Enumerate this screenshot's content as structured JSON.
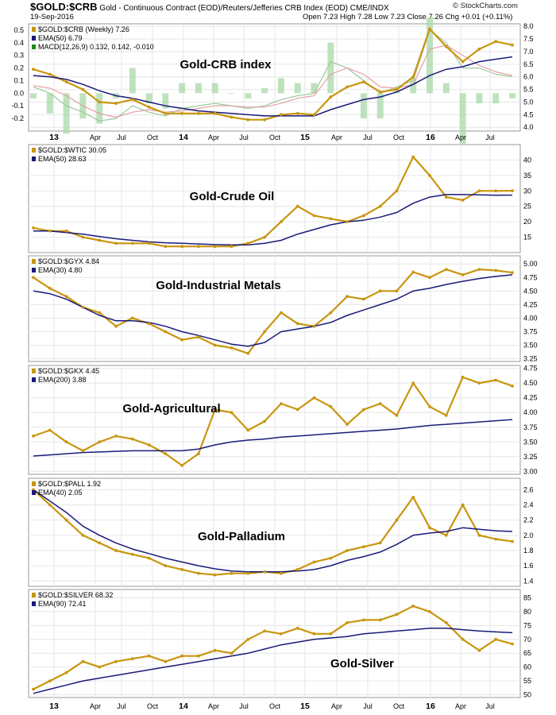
{
  "header": {
    "symbol": "$GOLD:$CRB",
    "description": "Gold - Continuous Contract (EOD)/Reuters/Jefferies CRB Index (EOD)  CME/INDX",
    "date": "19-Sep-2016",
    "ohlc": "Open 7.23  High 7.28  Low 7.23  Close 7.26  Chg +0.01 (+0.11%)",
    "watermark": "© StockCharts.com"
  },
  "colors": {
    "price": "#c8960f",
    "ema": "#1a1a7a",
    "grid": "#e6e6e6",
    "macd": "#1c8a1c",
    "signal": "#cc3333"
  },
  "chart_data": [
    {
      "type": "line",
      "legend": [
        "$GOLD:$CRB (Weekly) 7.26",
        "EMA(50) 6.79",
        "MACD(12,26,9) 0.132, 0.142, -0.010"
      ],
      "annotation": "Gold-CRB index",
      "ylim": [
        3.85,
        8.1
      ],
      "yticks": [
        4.0,
        4.5,
        5.0,
        5.5,
        6.0,
        6.5,
        7.0,
        7.5,
        8.0
      ],
      "ytick_labels": [
        "4.0",
        "4.5",
        "5.0",
        "5.5",
        "6.0",
        "6.5",
        "7.0",
        "7.5",
        "8.0"
      ],
      "macd_ylim": [
        -0.3,
        0.55
      ],
      "macd_ticks": [
        -0.2,
        -0.1,
        0.0,
        0.1,
        0.2,
        0.3,
        0.4,
        0.5
      ],
      "macd_tick_labels": [
        "-0.2",
        "-0.1",
        "0.0",
        "0.1",
        "0.2",
        "0.3",
        "0.4",
        "0.5"
      ],
      "price": [
        6.3,
        6.1,
        5.8,
        5.5,
        5.0,
        4.95,
        5.1,
        4.8,
        4.55,
        4.55,
        4.55,
        4.55,
        4.4,
        4.3,
        4.3,
        4.5,
        4.55,
        4.5,
        5.2,
        5.6,
        5.8,
        5.4,
        5.5,
        6.0,
        7.9,
        7.2,
        6.6,
        7.1,
        7.4,
        7.26
      ],
      "ema": [
        6.05,
        6.0,
        5.9,
        5.7,
        5.45,
        5.25,
        5.15,
        5.0,
        4.85,
        4.75,
        4.65,
        4.6,
        4.55,
        4.5,
        4.45,
        4.45,
        4.45,
        4.45,
        4.7,
        4.9,
        5.1,
        5.2,
        5.4,
        5.7,
        6.05,
        6.3,
        6.4,
        6.6,
        6.7,
        6.79
      ],
      "macd": [
        0.05,
        0.0,
        -0.1,
        -0.15,
        -0.22,
        -0.2,
        -0.1,
        -0.15,
        -0.18,
        -0.12,
        -0.1,
        -0.08,
        -0.1,
        -0.12,
        -0.1,
        -0.05,
        -0.02,
        0.0,
        0.25,
        0.2,
        0.1,
        0.0,
        0.05,
        0.1,
        0.5,
        0.4,
        0.2,
        0.2,
        0.15,
        0.132
      ],
      "signal": [
        0.06,
        0.04,
        -0.02,
        -0.1,
        -0.16,
        -0.19,
        -0.15,
        -0.13,
        -0.15,
        -0.14,
        -0.12,
        -0.1,
        -0.1,
        -0.11,
        -0.11,
        -0.08,
        -0.04,
        -0.02,
        0.15,
        0.2,
        0.15,
        0.05,
        0.04,
        0.07,
        0.35,
        0.38,
        0.3,
        0.22,
        0.17,
        0.142
      ]
    },
    {
      "type": "line",
      "legend": [
        "$GOLD:$WTIC 30.05",
        "EMA(50) 28.63"
      ],
      "annotation": "Gold-Crude Oil",
      "ylim": [
        10,
        45
      ],
      "yticks": [
        15,
        20,
        25,
        30,
        35,
        40
      ],
      "ytick_labels": [
        "15",
        "20",
        "25",
        "30",
        "35",
        "40"
      ],
      "price": [
        18,
        17,
        17,
        15,
        14,
        13,
        13,
        13,
        12,
        12,
        12,
        12,
        12,
        13,
        15,
        20,
        25,
        22,
        21,
        20,
        22,
        25,
        30,
        41,
        35,
        28,
        27,
        30,
        30,
        30.05
      ],
      "ema": [
        17,
        17,
        16.5,
        16,
        15.2,
        14.5,
        14,
        13.5,
        13.2,
        13,
        12.8,
        12.6,
        12.5,
        12.5,
        13,
        14,
        16,
        17.5,
        19,
        20,
        20.5,
        21.5,
        23,
        26,
        28,
        28.8,
        28.8,
        28.7,
        28.6,
        28.63
      ]
    },
    {
      "type": "line",
      "legend": [
        "$GOLD:$GYX 4.84",
        "EMA(30) 4.80"
      ],
      "annotation": "Gold-Industrial Metals",
      "ylim": [
        3.2,
        5.15
      ],
      "yticks": [
        3.25,
        3.5,
        3.75,
        4.0,
        4.25,
        4.5,
        4.75,
        5.0
      ],
      "ytick_labels": [
        "3.25",
        "3.50",
        "3.75",
        "4.00",
        "4.25",
        "4.50",
        "4.75",
        "5.00"
      ],
      "price": [
        4.75,
        4.55,
        4.4,
        4.2,
        4.1,
        3.85,
        4.0,
        3.9,
        3.75,
        3.6,
        3.65,
        3.5,
        3.45,
        3.35,
        3.75,
        4.1,
        3.9,
        3.85,
        4.1,
        4.4,
        4.35,
        4.5,
        4.5,
        4.85,
        4.75,
        4.9,
        4.8,
        4.9,
        4.88,
        4.84
      ],
      "ema": [
        4.5,
        4.45,
        4.35,
        4.2,
        4.05,
        3.95,
        3.95,
        3.92,
        3.85,
        3.75,
        3.68,
        3.6,
        3.52,
        3.48,
        3.55,
        3.75,
        3.8,
        3.85,
        3.92,
        4.05,
        4.15,
        4.25,
        4.35,
        4.5,
        4.55,
        4.62,
        4.68,
        4.73,
        4.77,
        4.8
      ]
    },
    {
      "type": "line",
      "legend": [
        "$GOLD:$GKX 4.45",
        "EMA(200) 3.88"
      ],
      "annotation": "Gold-Agricultural",
      "ylim": [
        2.95,
        4.8
      ],
      "yticks": [
        3.0,
        3.25,
        3.5,
        3.75,
        4.0,
        4.25,
        4.5,
        4.75
      ],
      "ytick_labels": [
        "3.00",
        "3.25",
        "3.50",
        "3.75",
        "4.00",
        "4.25",
        "4.50",
        "4.75"
      ],
      "price": [
        3.6,
        3.7,
        3.5,
        3.35,
        3.5,
        3.6,
        3.55,
        3.45,
        3.3,
        3.1,
        3.3,
        4.05,
        4.0,
        3.7,
        3.85,
        4.15,
        4.05,
        4.25,
        4.1,
        3.8,
        4.05,
        4.15,
        3.95,
        4.5,
        4.1,
        3.95,
        4.6,
        4.5,
        4.55,
        4.45
      ],
      "ema": [
        3.26,
        3.28,
        3.3,
        3.32,
        3.33,
        3.34,
        3.35,
        3.35,
        3.35,
        3.35,
        3.38,
        3.45,
        3.5,
        3.53,
        3.55,
        3.58,
        3.6,
        3.62,
        3.64,
        3.66,
        3.68,
        3.7,
        3.72,
        3.75,
        3.78,
        3.8,
        3.82,
        3.84,
        3.86,
        3.88
      ]
    },
    {
      "type": "line",
      "legend": [
        "$GOLD:$PALL 1.92",
        "EMA(40) 2.05"
      ],
      "annotation": "Gold-Palladium",
      "ylim": [
        1.33,
        2.75
      ],
      "yticks": [
        1.4,
        1.6,
        1.8,
        2.0,
        2.2,
        2.4,
        2.6
      ],
      "ytick_labels": [
        "1.4",
        "1.6",
        "1.8",
        "2.0",
        "2.2",
        "2.4",
        "2.6"
      ],
      "price": [
        2.6,
        2.4,
        2.2,
        2.0,
        1.9,
        1.8,
        1.75,
        1.7,
        1.6,
        1.55,
        1.5,
        1.48,
        1.5,
        1.5,
        1.52,
        1.5,
        1.55,
        1.65,
        1.7,
        1.8,
        1.85,
        1.9,
        2.2,
        2.5,
        2.1,
        2.0,
        2.4,
        2.0,
        1.95,
        1.92
      ],
      "ema": [
        2.6,
        2.45,
        2.3,
        2.12,
        2.0,
        1.9,
        1.82,
        1.76,
        1.7,
        1.65,
        1.6,
        1.56,
        1.53,
        1.52,
        1.52,
        1.52,
        1.53,
        1.55,
        1.6,
        1.67,
        1.72,
        1.78,
        1.88,
        2.0,
        2.03,
        2.05,
        2.1,
        2.08,
        2.06,
        2.05
      ]
    },
    {
      "type": "line",
      "legend": [
        "$GOLD:$SILVER 68.32",
        "EMA(90) 72.41"
      ],
      "annotation": "Gold-Silver",
      "ylim": [
        49,
        88
      ],
      "yticks": [
        50,
        55,
        60,
        65,
        70,
        75,
        80,
        85
      ],
      "ytick_labels": [
        "50",
        "55",
        "60",
        "65",
        "70",
        "75",
        "80",
        "85"
      ],
      "price": [
        52,
        55,
        58,
        62,
        60,
        62,
        63,
        64,
        62,
        64,
        64,
        66,
        65,
        70,
        73,
        72,
        74,
        72,
        72,
        76,
        77,
        77,
        79,
        82,
        80,
        76,
        70,
        66,
        70,
        68.32
      ],
      "ema": [
        50.5,
        52,
        53.5,
        55,
        56,
        57,
        58,
        59,
        60,
        61,
        62,
        63,
        64,
        65,
        66.5,
        68,
        69,
        70,
        70.5,
        71,
        72,
        72.5,
        73,
        73.5,
        74,
        74,
        73.5,
        73,
        72.7,
        72.41
      ]
    }
  ],
  "x_axis_top": {
    "tick_labels": [
      "13",
      "Apr",
      "Jul",
      "Oct",
      "14",
      "Apr",
      "Jul",
      "Oct",
      "15",
      "Apr",
      "Jul",
      "Oct",
      "16",
      "Apr",
      "Jul"
    ]
  },
  "x_axis_bottom": {
    "tick_labels": [
      "13",
      "Apr",
      "Jul",
      "Oct",
      "14",
      "Apr",
      "Jul",
      "Oct",
      "15",
      "Apr",
      "Jul",
      "Oct",
      "16",
      "Apr",
      "Jul"
    ]
  }
}
